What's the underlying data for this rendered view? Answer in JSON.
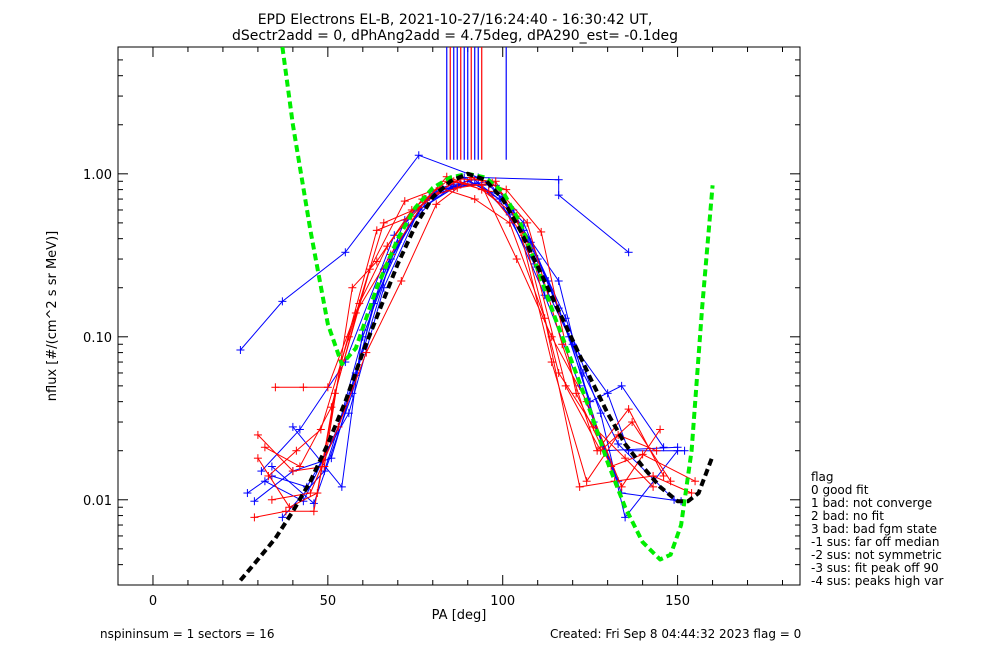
{
  "title_line1": "EPD Electrons EL-B, 2021-10-27/16:24:40 - 16:30:42 UT,",
  "title_line2": "dSectr2add = 0, dPhAng2add = 4.75deg, dPA290_est=  -0.1deg",
  "footer_left": "nspininsum =  1  sectors = 16",
  "footer_right": "Created: Fri Sep  8 04:44:32 2023   flag = 0",
  "legend": {
    "header": "flag",
    "items": [
      " 0 good fit",
      " 1 bad: not converge",
      " 2 bad: no fit",
      " 3 bad: bad fgm state",
      "-1 sus: far off median",
      "-2 sus: not symmetric",
      "-3 sus: fit peak off 90",
      "-4 sus: peaks high var"
    ]
  },
  "colors": {
    "red": "#ff0000",
    "blue": "#0000ff",
    "green": "#00ee00",
    "black": "#000000"
  },
  "chart_data": {
    "type": "line",
    "xlabel": "PA [deg]",
    "ylabel": "nflux [#/(cm^2 s sr MeV)]",
    "xlim": [
      -10,
      185
    ],
    "ylim": [
      0.003,
      6
    ],
    "yscale": "log",
    "xticks": [
      0,
      50,
      100,
      150
    ],
    "yticks": [
      0.01,
      0.1,
      1.0
    ],
    "ytick_labels": [
      "0.01",
      "0.10",
      "1.00"
    ],
    "peak_markers": [
      84,
      85,
      86,
      87,
      88,
      89,
      90,
      91,
      92,
      93,
      94,
      101
    ],
    "series": [
      {
        "color": "blue",
        "x": [
          25,
          37,
          55,
          76,
          93,
          116,
          116,
          136
        ],
        "y": [
          0.083,
          0.165,
          0.33,
          1.3,
          0.95,
          0.92,
          0.74,
          0.33
        ]
      },
      {
        "color": "blue",
        "x": [
          27,
          34,
          44,
          56,
          66,
          76,
          86,
          96,
          106,
          116,
          126,
          134,
          151
        ],
        "y": [
          0.011,
          0.014,
          0.012,
          0.034,
          0.2,
          0.6,
          0.82,
          0.9,
          0.45,
          0.22,
          0.03,
          0.011,
          0.0098
        ]
      },
      {
        "color": "blue",
        "x": [
          29,
          40,
          51,
          58,
          68,
          78,
          88,
          98,
          108,
          118,
          128,
          135,
          150
        ],
        "y": [
          0.0098,
          0.015,
          0.018,
          0.058,
          0.3,
          0.7,
          0.86,
          0.85,
          0.38,
          0.13,
          0.034,
          0.0078,
          0.02
        ]
      },
      {
        "color": "blue",
        "x": [
          32,
          43,
          53,
          60,
          70,
          80,
          90,
          100,
          110,
          120,
          130,
          136,
          152
        ],
        "y": [
          0.013,
          0.0098,
          0.028,
          0.1,
          0.38,
          0.76,
          0.9,
          0.72,
          0.3,
          0.09,
          0.045,
          0.02,
          0.02
        ]
      },
      {
        "color": "blue",
        "x": [
          34,
          46,
          57,
          63,
          73,
          83,
          93,
          103,
          113,
          123,
          133,
          149
        ],
        "y": [
          0.016,
          0.0095,
          0.045,
          0.16,
          0.48,
          0.8,
          0.88,
          0.6,
          0.22,
          0.06,
          0.022,
          0.01
        ]
      },
      {
        "color": "blue",
        "x": [
          37,
          49,
          58,
          66,
          76,
          86,
          96,
          106,
          116,
          125,
          134,
          146
        ],
        "y": [
          0.0078,
          0.015,
          0.06,
          0.26,
          0.6,
          0.84,
          0.86,
          0.5,
          0.15,
          0.04,
          0.05,
          0.021
        ]
      },
      {
        "color": "blue",
        "x": [
          31,
          42,
          55,
          69,
          79,
          89,
          99,
          109,
          119,
          129,
          150
        ],
        "y": [
          0.015,
          0.027,
          0.07,
          0.42,
          0.72,
          0.95,
          0.7,
          0.28,
          0.1,
          0.02,
          0.021
        ]
      },
      {
        "color": "blue",
        "x": [
          40,
          54,
          60,
          72,
          82,
          92,
          102,
          112,
          122,
          133
        ],
        "y": [
          0.028,
          0.012,
          0.11,
          0.52,
          0.82,
          0.92,
          0.56,
          0.18,
          0.05,
          0.013
        ]
      },
      {
        "color": "red",
        "x": [
          29,
          38,
          46,
          52,
          62,
          72,
          82,
          92,
          102,
          112,
          122,
          132,
          143,
          154
        ],
        "y": [
          0.0078,
          0.0085,
          0.0085,
          0.045,
          0.26,
          0.68,
          0.82,
          0.7,
          0.5,
          0.13,
          0.012,
          0.013,
          0.014,
          0.011
        ]
      },
      {
        "color": "red",
        "x": [
          30,
          39,
          47,
          54,
          64,
          74,
          84,
          94,
          104,
          114,
          124,
          133,
          144
        ],
        "y": [
          0.018,
          0.009,
          0.011,
          0.072,
          0.45,
          0.55,
          0.96,
          0.8,
          0.55,
          0.07,
          0.013,
          0.025,
          0.02
        ]
      },
      {
        "color": "red",
        "x": [
          33,
          41,
          48,
          56,
          66,
          76,
          86,
          96,
          106,
          116,
          126,
          135,
          143
        ],
        "y": [
          0.014,
          0.02,
          0.027,
          0.1,
          0.5,
          0.62,
          0.9,
          0.78,
          0.42,
          0.06,
          0.028,
          0.018,
          0.012
        ]
      },
      {
        "color": "red",
        "x": [
          35,
          43,
          50,
          58,
          68,
          78,
          88,
          98,
          108,
          118,
          128,
          137,
          148
        ],
        "y": [
          0.049,
          0.049,
          0.049,
          0.14,
          0.32,
          0.7,
          0.93,
          0.9,
          0.35,
          0.05,
          0.02,
          0.03,
          0.013
        ]
      },
      {
        "color": "red",
        "x": [
          30,
          40,
          49,
          57,
          64,
          74,
          84,
          94,
          104,
          114,
          124,
          134,
          145
        ],
        "y": [
          0.025,
          0.015,
          0.016,
          0.2,
          0.29,
          0.6,
          0.9,
          0.85,
          0.3,
          0.1,
          0.04,
          0.012,
          0.027
        ]
      },
      {
        "color": "red",
        "x": [
          32,
          42,
          51,
          59,
          67,
          77,
          87,
          97,
          107,
          117,
          127,
          136,
          146
        ],
        "y": [
          0.021,
          0.016,
          0.037,
          0.16,
          0.36,
          0.7,
          0.82,
          0.88,
          0.5,
          0.09,
          0.02,
          0.036,
          0.014
        ]
      },
      {
        "color": "red",
        "x": [
          34,
          45,
          53,
          61,
          71,
          81,
          91,
          101,
          111,
          121,
          131,
          140,
          155
        ],
        "y": [
          0.01,
          0.011,
          0.028,
          0.08,
          0.22,
          0.65,
          0.95,
          0.8,
          0.44,
          0.045,
          0.016,
          0.019,
          0.013
        ]
      }
    ],
    "fit_curves": [
      {
        "color": "green",
        "style": "dashed",
        "x": [
          37,
          40,
          45,
          50,
          54,
          58,
          64,
          70,
          75,
          80,
          85,
          90,
          95,
          100,
          105,
          110,
          115,
          120,
          125,
          130,
          135,
          140,
          145,
          148,
          151,
          154,
          157,
          160
        ],
        "y": [
          6.0,
          2.0,
          0.45,
          0.12,
          0.068,
          0.085,
          0.2,
          0.4,
          0.62,
          0.82,
          0.95,
          1.0,
          0.95,
          0.78,
          0.5,
          0.26,
          0.13,
          0.068,
          0.035,
          0.017,
          0.009,
          0.0055,
          0.0043,
          0.0046,
          0.007,
          0.02,
          0.15,
          0.85
        ]
      },
      {
        "color": "black",
        "style": "dashed",
        "x": [
          25,
          30,
          35,
          40,
          45,
          50,
          55,
          60,
          65,
          70,
          75,
          80,
          85,
          90,
          95,
          100,
          105,
          110,
          115,
          120,
          125,
          130,
          135,
          140,
          145,
          150,
          153,
          156,
          160
        ],
        "y": [
          0.0032,
          0.0043,
          0.0058,
          0.0085,
          0.013,
          0.022,
          0.04,
          0.08,
          0.15,
          0.28,
          0.48,
          0.72,
          0.9,
          1.0,
          0.92,
          0.7,
          0.45,
          0.27,
          0.16,
          0.095,
          0.056,
          0.034,
          0.022,
          0.016,
          0.012,
          0.0098,
          0.0098,
          0.011,
          0.0185
        ]
      }
    ]
  }
}
